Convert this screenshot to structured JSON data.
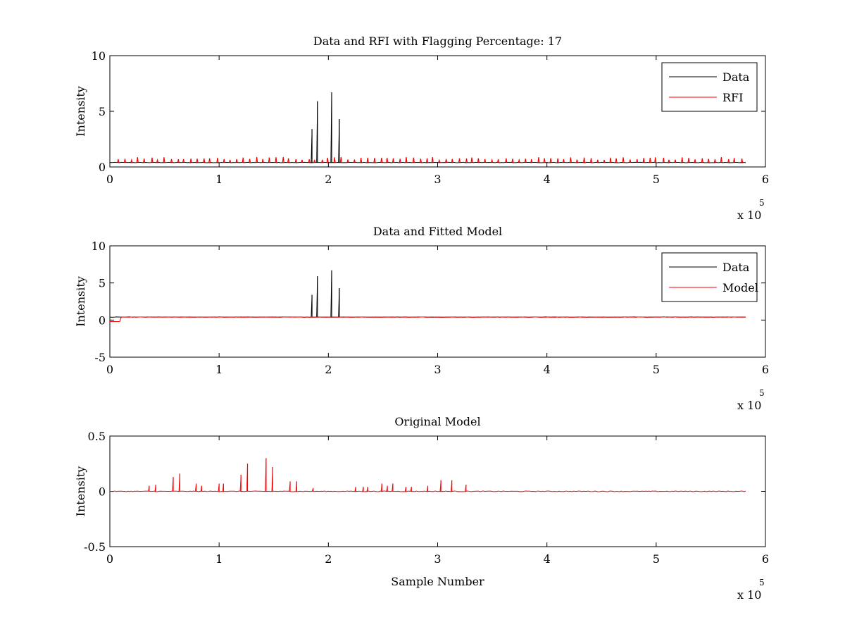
{
  "chart_data": [
    {
      "type": "line",
      "title": "Data and RFI with Flagging Percentage: 17",
      "xlabel": "",
      "ylabel": "Intensity",
      "xlim": [
        0,
        600000
      ],
      "ylim": [
        0,
        10
      ],
      "xticks": [
        0,
        100000,
        200000,
        300000,
        400000,
        500000,
        600000
      ],
      "xtick_labels": [
        "0",
        "1",
        "2",
        "3",
        "4",
        "5",
        "6"
      ],
      "yticks": [
        0,
        5,
        10
      ],
      "ytick_labels": [
        "0",
        "5",
        "10"
      ],
      "x_exponent": {
        "prefix": "x 10",
        "power": "5"
      },
      "grid": false,
      "legend_position": "top-right",
      "legend": [
        "Data",
        "RFI"
      ],
      "series": [
        {
          "name": "Data",
          "color": "#000000",
          "baseline": 0.4,
          "x_end": 583000,
          "spikes": [
            [
              185000,
              3.4
            ],
            [
              190000,
              5.9
            ],
            [
              203000,
              6.7
            ],
            [
              210000,
              4.3
            ]
          ]
        },
        {
          "name": "RFI",
          "color": "#ff0000",
          "segmented": true,
          "baseline": 0.4,
          "spike_height": 0.5,
          "x_start": 8000,
          "x_end": 583000,
          "spike_spacing": 6000
        }
      ]
    },
    {
      "type": "line",
      "title": "Data and Fitted Model",
      "xlabel": "",
      "ylabel": "Intensity",
      "xlim": [
        0,
        600000
      ],
      "ylim": [
        -5,
        10
      ],
      "xticks": [
        0,
        100000,
        200000,
        300000,
        400000,
        500000,
        600000
      ],
      "xtick_labels": [
        "0",
        "1",
        "2",
        "3",
        "4",
        "5",
        "6"
      ],
      "yticks": [
        -5,
        0,
        5,
        10
      ],
      "ytick_labels": [
        "-5",
        "0",
        "5",
        "10"
      ],
      "x_exponent": {
        "prefix": "x 10",
        "power": "5"
      },
      "grid": false,
      "legend_position": "top-right",
      "legend": [
        "Data",
        "Model"
      ],
      "series": [
        {
          "name": "Data",
          "color": "#000000",
          "baseline": 0.4,
          "x_end": 583000,
          "spikes": [
            [
              185000,
              3.4
            ],
            [
              190000,
              5.9
            ],
            [
              203000,
              6.7
            ],
            [
              210000,
              4.3
            ]
          ]
        },
        {
          "name": "Model",
          "color": "#ff0000",
          "baseline": 0.4,
          "x_end": 583000,
          "start_dip": {
            "x_end": 10000,
            "y": -0.2
          }
        }
      ]
    },
    {
      "type": "line",
      "title": "Original Model",
      "xlabel": "Sample Number",
      "ylabel": "Intensity",
      "xlim": [
        0,
        600000
      ],
      "ylim": [
        -0.5,
        0.5
      ],
      "xticks": [
        0,
        100000,
        200000,
        300000,
        400000,
        500000,
        600000
      ],
      "xtick_labels": [
        "0",
        "1",
        "2",
        "3",
        "4",
        "5",
        "6"
      ],
      "yticks": [
        -0.5,
        0,
        0.5
      ],
      "ytick_labels": [
        "-0.5",
        "0",
        "0.5"
      ],
      "x_exponent": {
        "prefix": "x 10",
        "power": "5"
      },
      "grid": false,
      "legend": [],
      "series": [
        {
          "name": "",
          "color": "#ff0000",
          "baseline": 0.0,
          "x_end": 583000,
          "spikes": [
            [
              36000,
              0.05
            ],
            [
              42000,
              0.06
            ],
            [
              58000,
              0.13
            ],
            [
              64000,
              0.16
            ],
            [
              79000,
              0.07
            ],
            [
              84000,
              0.05
            ],
            [
              100000,
              0.07
            ],
            [
              104000,
              0.07
            ],
            [
              120000,
              0.15
            ],
            [
              126000,
              0.25
            ],
            [
              143000,
              0.3
            ],
            [
              149000,
              0.22
            ],
            [
              165000,
              0.09
            ],
            [
              171000,
              0.09
            ],
            [
              186000,
              0.03
            ],
            [
              225000,
              0.04
            ],
            [
              232000,
              0.04
            ],
            [
              236000,
              0.04
            ],
            [
              249000,
              0.07
            ],
            [
              254000,
              0.05
            ],
            [
              259000,
              0.07
            ],
            [
              271000,
              0.04
            ],
            [
              276000,
              0.04
            ],
            [
              291000,
              0.05
            ],
            [
              303000,
              0.1
            ],
            [
              313000,
              0.1
            ],
            [
              326000,
              0.06
            ]
          ]
        }
      ]
    }
  ]
}
